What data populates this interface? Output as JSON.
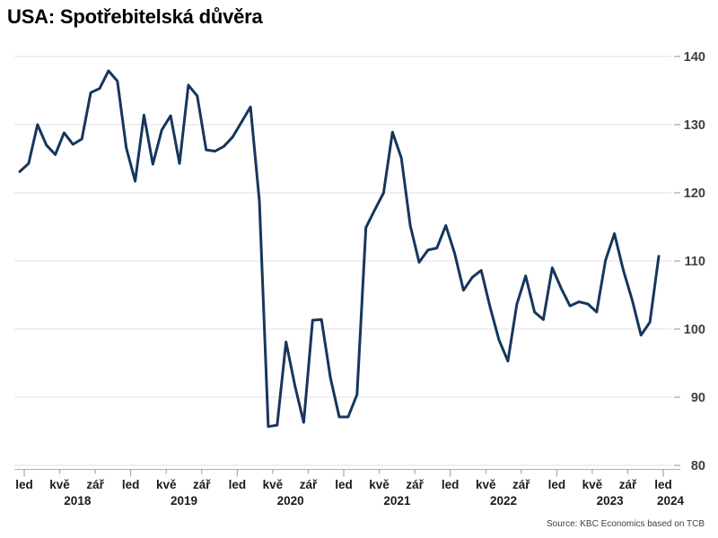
{
  "header": {
    "title": "USA: Spotřebitelská důvěra"
  },
  "footer": {
    "source": "Source: KBC Economics based on TCB"
  },
  "chart_data": {
    "type": "line",
    "title": "USA: Spotřebitelská důvěra",
    "xlabel": "",
    "ylabel": "",
    "ylim": [
      80,
      140
    ],
    "y_ticks": [
      80,
      90,
      100,
      110,
      120,
      130,
      140
    ],
    "grid": "horizontal",
    "legend": "none",
    "line_color": "#16365d",
    "x_tick_labels": [
      "led",
      "kvě",
      "zář",
      "led",
      "kvě",
      "zář",
      "led",
      "kvě",
      "zář",
      "led",
      "kvě",
      "zář",
      "led",
      "kvě",
      "zář",
      "led",
      "kvě",
      "zář",
      "led"
    ],
    "x_year_labels": [
      "2018",
      "2019",
      "2020",
      "2021",
      "2022",
      "2023",
      "2024"
    ],
    "series": [
      {
        "name": "Spotřebitelská důvěra",
        "frequency": "monthly",
        "x_start": "2017-12",
        "x_end": "2023-12",
        "values": [
          123.1,
          124.3,
          130.0,
          127.0,
          125.6,
          128.8,
          127.1,
          127.9,
          134.7,
          135.3,
          137.9,
          136.4,
          126.6,
          121.7,
          131.4,
          124.2,
          129.2,
          131.3,
          124.3,
          135.8,
          134.2,
          126.3,
          126.1,
          126.8,
          128.2,
          130.4,
          132.6,
          118.8,
          85.7,
          85.9,
          98.1,
          91.7,
          86.3,
          101.3,
          101.4,
          92.9,
          87.1,
          87.1,
          90.4,
          114.9,
          117.5,
          120.0,
          128.9,
          125.1,
          115.2,
          109.8,
          111.6,
          111.9,
          115.2,
          111.1,
          105.7,
          107.6,
          108.6,
          103.2,
          98.4,
          95.3,
          103.6,
          107.8,
          102.5,
          101.4,
          109.0,
          106.0,
          103.4,
          104.0,
          103.7,
          102.5,
          110.1,
          114.0,
          108.7,
          104.3,
          99.1,
          101.0,
          110.7
        ]
      }
    ]
  }
}
